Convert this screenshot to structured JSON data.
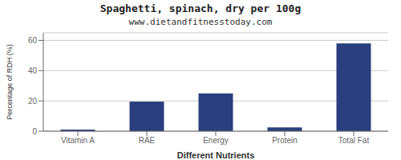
{
  "chart_data": {
    "type": "bar",
    "title": "Spaghetti, spinach, dry per 100g",
    "subtitle": "www.dietandfitnesstoday.com",
    "xlabel": "Different Nutrients",
    "ylabel": "Percentage of RDH (%)",
    "categories": [
      "Vitamin A",
      "RAE",
      "Energy",
      "Protein",
      "Total Fat"
    ],
    "values": [
      1.0,
      19.5,
      25.0,
      2.5,
      58.0
    ],
    "color": "#2b3f7e",
    "ylim": [
      0,
      65
    ],
    "yticks": [
      0,
      20,
      40,
      60
    ],
    "grid": true
  }
}
